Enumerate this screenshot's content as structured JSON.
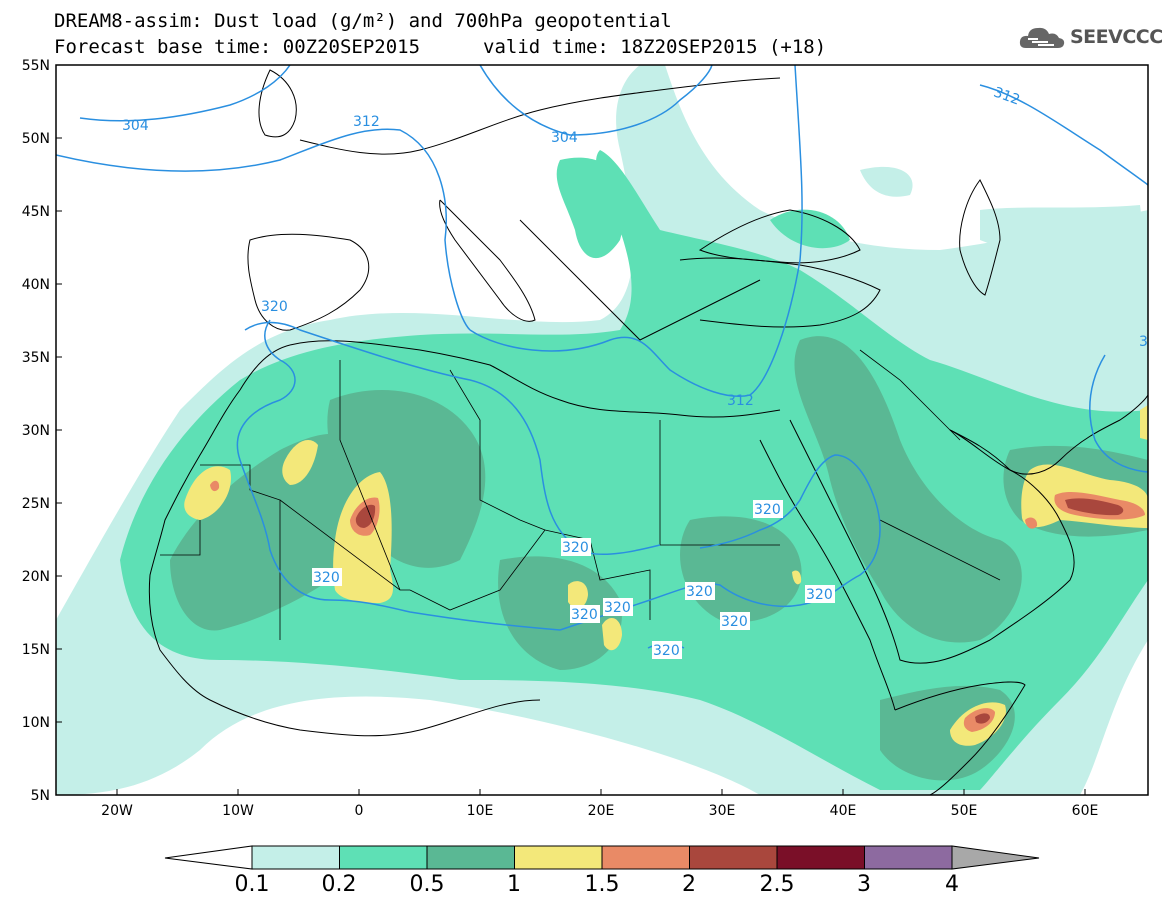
{
  "title": {
    "line1": "DREAM8-assim: Dust load (g/m²) and 700hPa geopotential",
    "base_time": "Forecast base time: 00Z20SEP2015",
    "valid_time": "valid time: 18Z20SEP2015 (+18)"
  },
  "logo": {
    "text": "SEEVCCC",
    "icon": "cloud-logo-icon"
  },
  "map": {
    "lat_labels": [
      "55N",
      "50N",
      "45N",
      "40N",
      "35N",
      "30N",
      "25N",
      "20N",
      "15N",
      "10N",
      "5N"
    ],
    "lon_labels": [
      "20W",
      "10W",
      "0",
      "10E",
      "20E",
      "30E",
      "40E",
      "50E",
      "60E"
    ],
    "geopotential_labels": [
      "304",
      "312",
      "304",
      "312",
      "320",
      "312",
      "320",
      "320",
      "320",
      "320",
      "320",
      "320",
      "320",
      "320",
      "320",
      "3"
    ]
  },
  "colorbar": {
    "labels": [
      "0.1",
      "0.2",
      "0.5",
      "1",
      "1.5",
      "2",
      "2.5",
      "3",
      "4"
    ],
    "colors": [
      "#c4efe8",
      "#5ee0b5",
      "#5ab894",
      "#f3e87a",
      "#e98a66",
      "#a9473d",
      "#7a0f28",
      "#8d6aa0",
      "#a8a8a8"
    ]
  }
}
